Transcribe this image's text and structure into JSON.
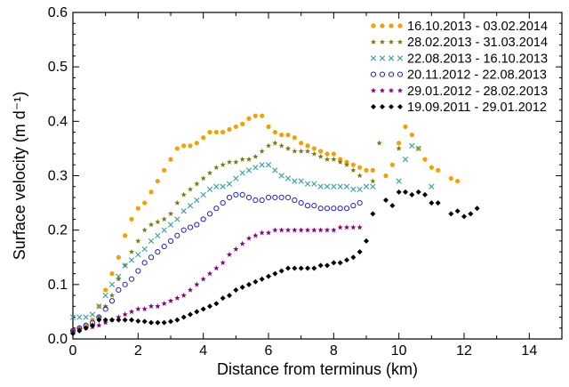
{
  "chart_data": {
    "type": "scatter",
    "title": "",
    "xlabel": "Distance from terminus (km)",
    "ylabel": "Surface velocity (m d⁻¹)",
    "xlim": [
      0,
      15
    ],
    "ylim": [
      0,
      0.6
    ],
    "xticks": [
      "0",
      "2",
      "4",
      "6",
      "8",
      "10",
      "12",
      "14"
    ],
    "yticks": [
      "0.0",
      "0.1",
      "0.2",
      "0.3",
      "0.4",
      "0.5",
      "0.6"
    ],
    "grid": false,
    "legend_position": "top-right",
    "series": [
      {
        "name": "16.10.2013 - 03.02.2014",
        "color": "#f5a000",
        "marker": "filled-circle",
        "x": [
          0,
          0.2,
          0.4,
          0.6,
          0.8,
          1.0,
          1.2,
          1.4,
          1.6,
          1.8,
          2.0,
          2.2,
          2.4,
          2.6,
          2.8,
          3.0,
          3.2,
          3.4,
          3.6,
          3.8,
          4.0,
          4.2,
          4.4,
          4.6,
          4.8,
          5.0,
          5.2,
          5.4,
          5.6,
          5.8,
          6.0,
          6.2,
          6.4,
          6.6,
          6.8,
          7.0,
          7.2,
          7.4,
          7.6,
          7.8,
          8.0,
          8.2,
          8.4,
          8.6,
          8.8,
          9.0,
          9.2,
          9.6,
          9.8,
          10.0,
          10.2,
          10.4,
          10.6,
          10.8,
          11.0,
          11.2,
          11.6,
          11.8
        ],
        "y": [
          0.015,
          0.02,
          0.025,
          0.035,
          0.06,
          0.09,
          0.12,
          0.15,
          0.19,
          0.22,
          0.24,
          0.25,
          0.27,
          0.29,
          0.31,
          0.33,
          0.35,
          0.355,
          0.355,
          0.36,
          0.37,
          0.38,
          0.38,
          0.38,
          0.385,
          0.39,
          0.395,
          0.405,
          0.41,
          0.41,
          0.39,
          0.38,
          0.375,
          0.375,
          0.37,
          0.36,
          0.355,
          0.35,
          0.345,
          0.34,
          0.34,
          0.33,
          0.325,
          0.32,
          0.315,
          0.31,
          0.31,
          0.3,
          0.32,
          0.36,
          0.39,
          0.375,
          0.35,
          0.33,
          0.315,
          0.31,
          0.295,
          0.29
        ],
        "x_flat": true
      },
      {
        "name": "28.02.2013 - 31.03.2014",
        "color": "#7a7a10",
        "marker": "star",
        "x": [
          0,
          0.2,
          0.4,
          0.6,
          0.8,
          1.0,
          1.2,
          1.4,
          1.6,
          1.8,
          2.0,
          2.2,
          2.4,
          2.6,
          2.8,
          3.0,
          3.2,
          3.4,
          3.6,
          3.8,
          4.0,
          4.2,
          4.4,
          4.6,
          4.8,
          5.0,
          5.2,
          5.4,
          5.6,
          5.8,
          6.0,
          6.2,
          6.4,
          6.6,
          6.8,
          7.0,
          7.2,
          7.4,
          7.6,
          7.8,
          8.0,
          8.2,
          8.4,
          8.6,
          8.8,
          9.2,
          9.4,
          10.0
        ],
        "y": [
          0.015,
          0.018,
          0.02,
          0.025,
          0.04,
          0.06,
          0.08,
          0.11,
          0.135,
          0.16,
          0.18,
          0.2,
          0.21,
          0.215,
          0.22,
          0.23,
          0.25,
          0.265,
          0.275,
          0.285,
          0.295,
          0.305,
          0.315,
          0.32,
          0.325,
          0.325,
          0.33,
          0.33,
          0.335,
          0.345,
          0.355,
          0.36,
          0.355,
          0.35,
          0.345,
          0.345,
          0.345,
          0.34,
          0.335,
          0.33,
          0.33,
          0.325,
          0.32,
          0.31,
          0.3,
          0.29,
          0.36,
          0.35
        ],
        "x_flat": true
      },
      {
        "name": "22.08.2013 - 16.10.2013",
        "color": "#35a0a0",
        "marker": "cross",
        "x": [
          0,
          0.2,
          0.4,
          0.6,
          0.8,
          1.0,
          1.2,
          1.4,
          1.6,
          1.8,
          2.0,
          2.2,
          2.4,
          2.6,
          2.8,
          3.0,
          3.2,
          3.4,
          3.6,
          3.8,
          4.0,
          4.2,
          4.4,
          4.6,
          4.8,
          5.0,
          5.2,
          5.4,
          5.6,
          5.8,
          6.0,
          6.2,
          6.4,
          6.6,
          6.8,
          7.0,
          7.2,
          7.4,
          7.6,
          7.8,
          8.0,
          8.2,
          8.4,
          8.6,
          8.8,
          9.0,
          9.2,
          10.0,
          10.2,
          10.4,
          10.6,
          11.0
        ],
        "y": [
          0.04,
          0.04,
          0.04,
          0.045,
          0.06,
          0.08,
          0.1,
          0.115,
          0.135,
          0.145,
          0.155,
          0.165,
          0.18,
          0.19,
          0.2,
          0.21,
          0.22,
          0.235,
          0.245,
          0.255,
          0.265,
          0.275,
          0.28,
          0.28,
          0.285,
          0.295,
          0.305,
          0.31,
          0.315,
          0.32,
          0.32,
          0.31,
          0.3,
          0.295,
          0.29,
          0.29,
          0.285,
          0.285,
          0.28,
          0.28,
          0.28,
          0.28,
          0.28,
          0.275,
          0.275,
          0.28,
          0.28,
          0.29,
          0.33,
          0.355,
          0.35,
          0.28
        ],
        "x_flat": true
      },
      {
        "name": "20.11.2012 - 22.08.2013",
        "color": "#2222cc",
        "marker": "open-circle",
        "x": [
          0,
          0.2,
          0.4,
          0.6,
          0.8,
          1.0,
          1.2,
          1.4,
          1.6,
          1.8,
          2.0,
          2.2,
          2.4,
          2.6,
          2.8,
          3.0,
          3.2,
          3.4,
          3.6,
          3.8,
          4.0,
          4.2,
          4.4,
          4.6,
          4.8,
          5.0,
          5.2,
          5.4,
          5.6,
          5.8,
          6.0,
          6.2,
          6.4,
          6.6,
          6.8,
          7.0,
          7.2,
          7.4,
          7.6,
          7.8,
          8.0,
          8.2,
          8.4,
          8.6,
          8.8
        ],
        "y": [
          0.015,
          0.02,
          0.025,
          0.03,
          0.04,
          0.055,
          0.07,
          0.09,
          0.1,
          0.11,
          0.125,
          0.14,
          0.15,
          0.16,
          0.17,
          0.18,
          0.19,
          0.2,
          0.205,
          0.21,
          0.22,
          0.23,
          0.24,
          0.25,
          0.26,
          0.265,
          0.265,
          0.26,
          0.255,
          0.255,
          0.26,
          0.26,
          0.26,
          0.26,
          0.255,
          0.25,
          0.245,
          0.245,
          0.24,
          0.24,
          0.24,
          0.24,
          0.24,
          0.245,
          0.25
        ],
        "x_flat": true
      },
      {
        "name": "29.01.2012 - 28.02.2013",
        "color": "#8b0080",
        "marker": "star",
        "x": [
          0,
          0.2,
          0.4,
          0.6,
          0.8,
          1.0,
          1.2,
          1.4,
          1.6,
          1.8,
          2.0,
          2.2,
          2.4,
          2.6,
          2.8,
          3.0,
          3.2,
          3.4,
          3.6,
          3.8,
          4.0,
          4.2,
          4.4,
          4.6,
          4.8,
          5.0,
          5.2,
          5.4,
          5.6,
          5.8,
          6.0,
          6.2,
          6.4,
          6.6,
          6.8,
          7.0,
          7.2,
          7.4,
          7.6,
          7.8,
          8.0,
          8.2,
          8.4,
          8.6,
          8.8
        ],
        "y": [
          0.015,
          0.018,
          0.02,
          0.022,
          0.025,
          0.03,
          0.035,
          0.04,
          0.045,
          0.05,
          0.055,
          0.055,
          0.06,
          0.06,
          0.065,
          0.07,
          0.075,
          0.08,
          0.09,
          0.1,
          0.11,
          0.12,
          0.13,
          0.14,
          0.155,
          0.165,
          0.175,
          0.185,
          0.19,
          0.195,
          0.195,
          0.2,
          0.2,
          0.2,
          0.2,
          0.2,
          0.2,
          0.2,
          0.2,
          0.2,
          0.2,
          0.205,
          0.205,
          0.205,
          0.205
        ],
        "x_flat": true
      },
      {
        "name": "19.09.2011 - 29.01.2012",
        "color": "#000000",
        "marker": "diamond",
        "x": [
          0,
          0.2,
          0.4,
          0.6,
          0.8,
          1.0,
          1.2,
          1.4,
          1.6,
          1.8,
          2.0,
          2.2,
          2.4,
          2.6,
          2.8,
          3.0,
          3.2,
          3.4,
          3.6,
          3.8,
          4.0,
          4.2,
          4.4,
          4.6,
          4.8,
          5.0,
          5.2,
          5.4,
          5.6,
          5.8,
          6.0,
          6.2,
          6.4,
          6.6,
          6.8,
          7.0,
          7.2,
          7.4,
          7.6,
          7.8,
          8.0,
          8.2,
          8.4,
          8.6,
          8.8,
          9.0,
          9.2,
          9.6,
          9.8,
          10.0,
          10.2,
          10.4,
          10.6,
          10.8,
          11.0,
          11.2,
          11.6,
          11.8,
          12.0,
          12.2,
          12.4
        ],
        "y": [
          0.01,
          0.015,
          0.02,
          0.025,
          0.035,
          0.035,
          0.035,
          0.035,
          0.035,
          0.035,
          0.033,
          0.032,
          0.03,
          0.03,
          0.03,
          0.032,
          0.035,
          0.04,
          0.045,
          0.05,
          0.055,
          0.06,
          0.065,
          0.075,
          0.08,
          0.09,
          0.095,
          0.1,
          0.105,
          0.11,
          0.115,
          0.12,
          0.125,
          0.13,
          0.13,
          0.13,
          0.13,
          0.13,
          0.135,
          0.135,
          0.14,
          0.14,
          0.145,
          0.15,
          0.16,
          0.18,
          0.23,
          0.255,
          0.245,
          0.27,
          0.27,
          0.265,
          0.27,
          0.265,
          0.25,
          0.25,
          0.23,
          0.235,
          0.225,
          0.23,
          0.24
        ],
        "x_flat": true
      }
    ]
  }
}
